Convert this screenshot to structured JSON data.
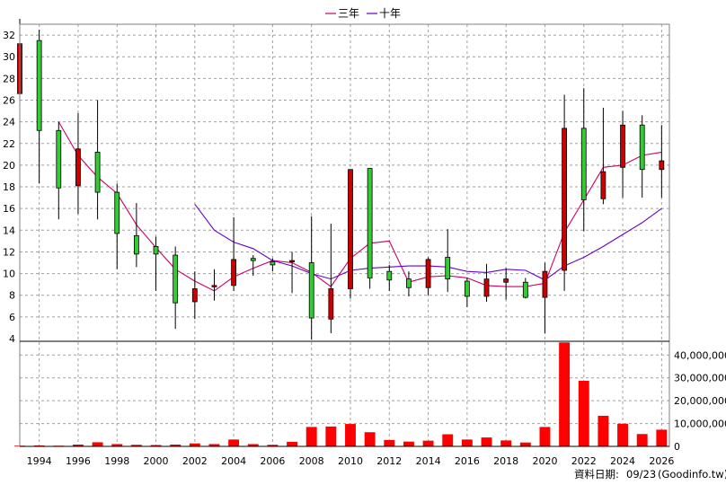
{
  "legend": [
    {
      "label": "三年",
      "color": "#cc0066"
    },
    {
      "label": "十年",
      "color": "#6600cc"
    }
  ],
  "footer": {
    "label": "資料日期:",
    "date": "09/23",
    "source": "(Goodinfo.tw)"
  },
  "chart_data": {
    "type": "candlestick",
    "title": "",
    "colors": {
      "up": "#cc0000",
      "down": "#33cc33",
      "volume": "#ff0000",
      "ma3": "#cc0066",
      "ma10": "#6600cc"
    },
    "price_axis": {
      "ylim": [
        4,
        33
      ],
      "ticks": [
        4,
        6,
        8,
        10,
        12,
        14,
        16,
        18,
        20,
        22,
        24,
        26,
        28,
        30,
        32
      ]
    },
    "volume_axis": {
      "ylim": [
        0,
        46000000
      ],
      "ticks": [
        0,
        10000000,
        20000000,
        30000000,
        40000000
      ],
      "tick_labels": [
        "0",
        "10,000,000",
        "20,000,000",
        "30,000,000",
        "40,000,000"
      ]
    },
    "x_axis": {
      "xlim": [
        1993,
        2026.4
      ],
      "ticks": [
        1994,
        1996,
        1998,
        2000,
        2002,
        2004,
        2006,
        2008,
        2010,
        2012,
        2014,
        2016,
        2018,
        2020,
        2022,
        2024,
        2026
      ]
    },
    "candles": [
      {
        "year": 1993,
        "open": 26.6,
        "close": 31.2,
        "high": 33.5,
        "low": 17.0,
        "volume": 300000
      },
      {
        "year": 1994,
        "open": 31.5,
        "close": 23.2,
        "high": 32.5,
        "low": 18.3,
        "volume": 400000
      },
      {
        "year": 1995,
        "open": 23.2,
        "close": 17.9,
        "high": 24.0,
        "low": 15.0,
        "volume": 300000
      },
      {
        "year": 1996,
        "open": 18.1,
        "close": 21.5,
        "high": 24.8,
        "low": 15.5,
        "volume": 800000
      },
      {
        "year": 1997,
        "open": 21.2,
        "close": 17.5,
        "high": 26.0,
        "low": 15.0,
        "volume": 1800000
      },
      {
        "year": 1998,
        "open": 17.5,
        "close": 13.7,
        "high": 18.3,
        "low": 10.4,
        "volume": 1000000
      },
      {
        "year": 1999,
        "open": 13.5,
        "close": 11.8,
        "high": 16.5,
        "low": 10.6,
        "volume": 700000
      },
      {
        "year": 2000,
        "open": 12.5,
        "close": 11.8,
        "high": 13.4,
        "low": 8.4,
        "volume": 600000
      },
      {
        "year": 2001,
        "open": 11.7,
        "close": 7.3,
        "high": 12.5,
        "low": 4.9,
        "volume": 800000
      },
      {
        "year": 2002,
        "open": 7.4,
        "close": 8.6,
        "high": 10.2,
        "low": 5.8,
        "volume": 1300000
      },
      {
        "year": 2003,
        "open": 8.8,
        "close": 8.9,
        "high": 10.4,
        "low": 7.5,
        "volume": 1000000
      },
      {
        "year": 2004,
        "open": 8.9,
        "close": 11.3,
        "high": 15.2,
        "low": 8.4,
        "volume": 3000000
      },
      {
        "year": 2005,
        "open": 11.4,
        "close": 11.2,
        "high": 11.7,
        "low": 9.8,
        "volume": 1000000
      },
      {
        "year": 2006,
        "open": 11.1,
        "close": 10.8,
        "high": 11.4,
        "low": 10.2,
        "volume": 700000
      },
      {
        "year": 2007,
        "open": 11.1,
        "close": 11.2,
        "high": 12.0,
        "low": 8.2,
        "volume": 2000000
      },
      {
        "year": 2008,
        "open": 11.0,
        "close": 5.9,
        "high": 15.3,
        "low": 3.9,
        "volume": 8500000
      },
      {
        "year": 2009,
        "open": 5.8,
        "close": 8.6,
        "high": 14.6,
        "low": 4.5,
        "volume": 8700000
      },
      {
        "year": 2010,
        "open": 8.6,
        "close": 19.6,
        "high": 19.6,
        "low": 7.7,
        "volume": 9800000
      },
      {
        "year": 2011,
        "open": 19.7,
        "close": 9.6,
        "high": 19.7,
        "low": 8.6,
        "volume": 6200000
      },
      {
        "year": 2012,
        "open": 10.2,
        "close": 9.4,
        "high": 10.8,
        "low": 8.4,
        "volume": 2800000
      },
      {
        "year": 2013,
        "open": 9.5,
        "close": 8.7,
        "high": 10.2,
        "low": 7.9,
        "volume": 2100000
      },
      {
        "year": 2014,
        "open": 8.7,
        "close": 11.3,
        "high": 11.5,
        "low": 8.0,
        "volume": 2500000
      },
      {
        "year": 2015,
        "open": 11.5,
        "close": 9.5,
        "high": 14.1,
        "low": 8.3,
        "volume": 5300000
      },
      {
        "year": 2016,
        "open": 9.3,
        "close": 7.9,
        "high": 9.6,
        "low": 6.9,
        "volume": 3000000
      },
      {
        "year": 2017,
        "open": 7.9,
        "close": 9.5,
        "high": 10.9,
        "low": 7.4,
        "volume": 3900000
      },
      {
        "year": 2018,
        "open": 9.2,
        "close": 9.5,
        "high": 10.5,
        "low": 7.6,
        "volume": 2600000
      },
      {
        "year": 2019,
        "open": 9.2,
        "close": 7.8,
        "high": 9.6,
        "low": 7.7,
        "volume": 1700000
      },
      {
        "year": 2020,
        "open": 7.8,
        "close": 10.2,
        "high": 11.0,
        "low": 4.5,
        "volume": 8500000
      },
      {
        "year": 2021,
        "open": 10.3,
        "close": 23.4,
        "high": 26.5,
        "low": 8.4,
        "volume": 45500000
      },
      {
        "year": 2022,
        "open": 23.4,
        "close": 16.8,
        "high": 27.1,
        "low": 13.9,
        "volume": 28700000
      },
      {
        "year": 2023,
        "open": 16.9,
        "close": 19.4,
        "high": 25.3,
        "low": 16.4,
        "volume": 13400000
      },
      {
        "year": 2024,
        "open": 19.8,
        "close": 23.7,
        "high": 25.0,
        "low": 17.0,
        "volume": 9900000
      },
      {
        "year": 2025,
        "open": 23.7,
        "close": 19.6,
        "high": 24.6,
        "low": 17.0,
        "volume": 5400000
      },
      {
        "year": 2026,
        "open": 19.6,
        "close": 20.4,
        "high": 23.7,
        "low": 17.0,
        "volume": 7300000
      }
    ],
    "moving_averages": [
      {
        "name": "三年",
        "points": [
          [
            1995,
            24.0
          ],
          [
            1996,
            20.9
          ],
          [
            1997,
            18.9
          ],
          [
            1998,
            17.4
          ],
          [
            1999,
            14.5
          ],
          [
            2000,
            12.4
          ],
          [
            2001,
            10.4
          ],
          [
            2002,
            9.3
          ],
          [
            2003,
            8.4
          ],
          [
            2004,
            9.7
          ],
          [
            2005,
            10.5
          ],
          [
            2006,
            11.2
          ],
          [
            2007,
            11.0
          ],
          [
            2008,
            10.1
          ],
          [
            2009,
            8.8
          ],
          [
            2010,
            11.4
          ],
          [
            2011,
            12.8
          ],
          [
            2012,
            13.0
          ],
          [
            2013,
            9.2
          ],
          [
            2014,
            9.7
          ],
          [
            2015,
            9.8
          ],
          [
            2016,
            9.6
          ],
          [
            2017,
            8.9
          ],
          [
            2018,
            8.8
          ],
          [
            2019,
            8.8
          ],
          [
            2020,
            9.1
          ],
          [
            2021,
            13.8
          ],
          [
            2022,
            16.8
          ],
          [
            2023,
            19.8
          ],
          [
            2024,
            20.0
          ],
          [
            2025,
            20.9
          ],
          [
            2026,
            21.2
          ]
        ]
      },
      {
        "name": "十年",
        "points": [
          [
            2002,
            16.4
          ],
          [
            2003,
            14.0
          ],
          [
            2004,
            12.9
          ],
          [
            2005,
            12.3
          ],
          [
            2006,
            11.2
          ],
          [
            2007,
            10.7
          ],
          [
            2008,
            10.0
          ],
          [
            2009,
            9.5
          ],
          [
            2010,
            10.3
          ],
          [
            2011,
            10.5
          ],
          [
            2012,
            10.6
          ],
          [
            2013,
            10.7
          ],
          [
            2014,
            10.7
          ],
          [
            2015,
            10.6
          ],
          [
            2016,
            10.2
          ],
          [
            2017,
            10.1
          ],
          [
            2018,
            10.4
          ],
          [
            2019,
            10.3
          ],
          [
            2020,
            9.4
          ],
          [
            2021,
            10.7
          ],
          [
            2022,
            11.5
          ],
          [
            2023,
            12.5
          ],
          [
            2024,
            13.6
          ],
          [
            2025,
            14.7
          ],
          [
            2026,
            16.0
          ]
        ]
      }
    ]
  }
}
